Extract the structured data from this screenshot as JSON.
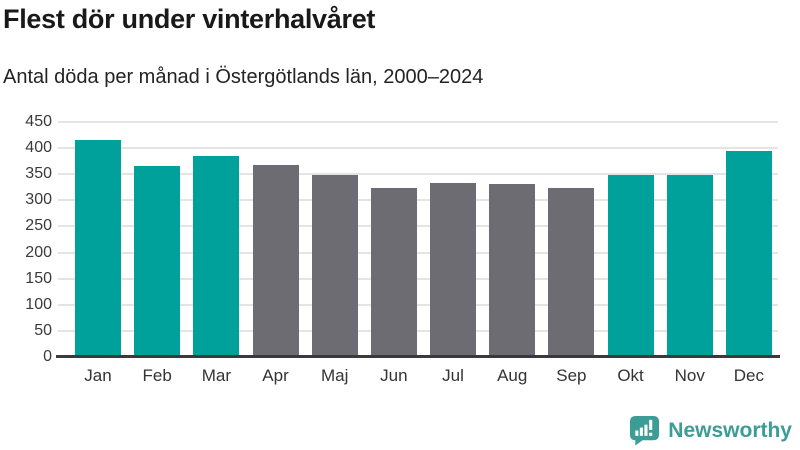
{
  "chart_data": {
    "type": "bar",
    "title": "Flest dör under vinterhalvåret",
    "subtitle": "Antal döda per månad i Östergötlands län, 2000–2024",
    "categories": [
      "Jan",
      "Feb",
      "Mar",
      "Apr",
      "Maj",
      "Jun",
      "Jul",
      "Aug",
      "Sep",
      "Okt",
      "Nov",
      "Dec"
    ],
    "values": [
      415,
      366,
      385,
      368,
      349,
      323,
      334,
      332,
      324,
      348,
      348,
      394
    ],
    "bar_groups": [
      "winter",
      "winter",
      "winter",
      "summer",
      "summer",
      "summer",
      "summer",
      "summer",
      "summer",
      "winter",
      "winter",
      "winter"
    ],
    "group_colors": {
      "winter": "#00A19A",
      "summer": "#6C6C72"
    },
    "xlabel": "",
    "ylabel": "",
    "ylim": [
      0,
      450
    ],
    "yticks": [
      0,
      50,
      100,
      150,
      200,
      250,
      300,
      350,
      400,
      450
    ],
    "grid": "horizontal",
    "legend_position": "none",
    "gridline_color": "#E4E4E4",
    "axis_line_color": "#3A3A3E",
    "tick_label_color": "#3A3A3A"
  },
  "branding": {
    "wordmark": "Newsworthy",
    "color": "#3C9D96",
    "icon": "newsworthy-bar-chart-speech-bubble-icon"
  }
}
